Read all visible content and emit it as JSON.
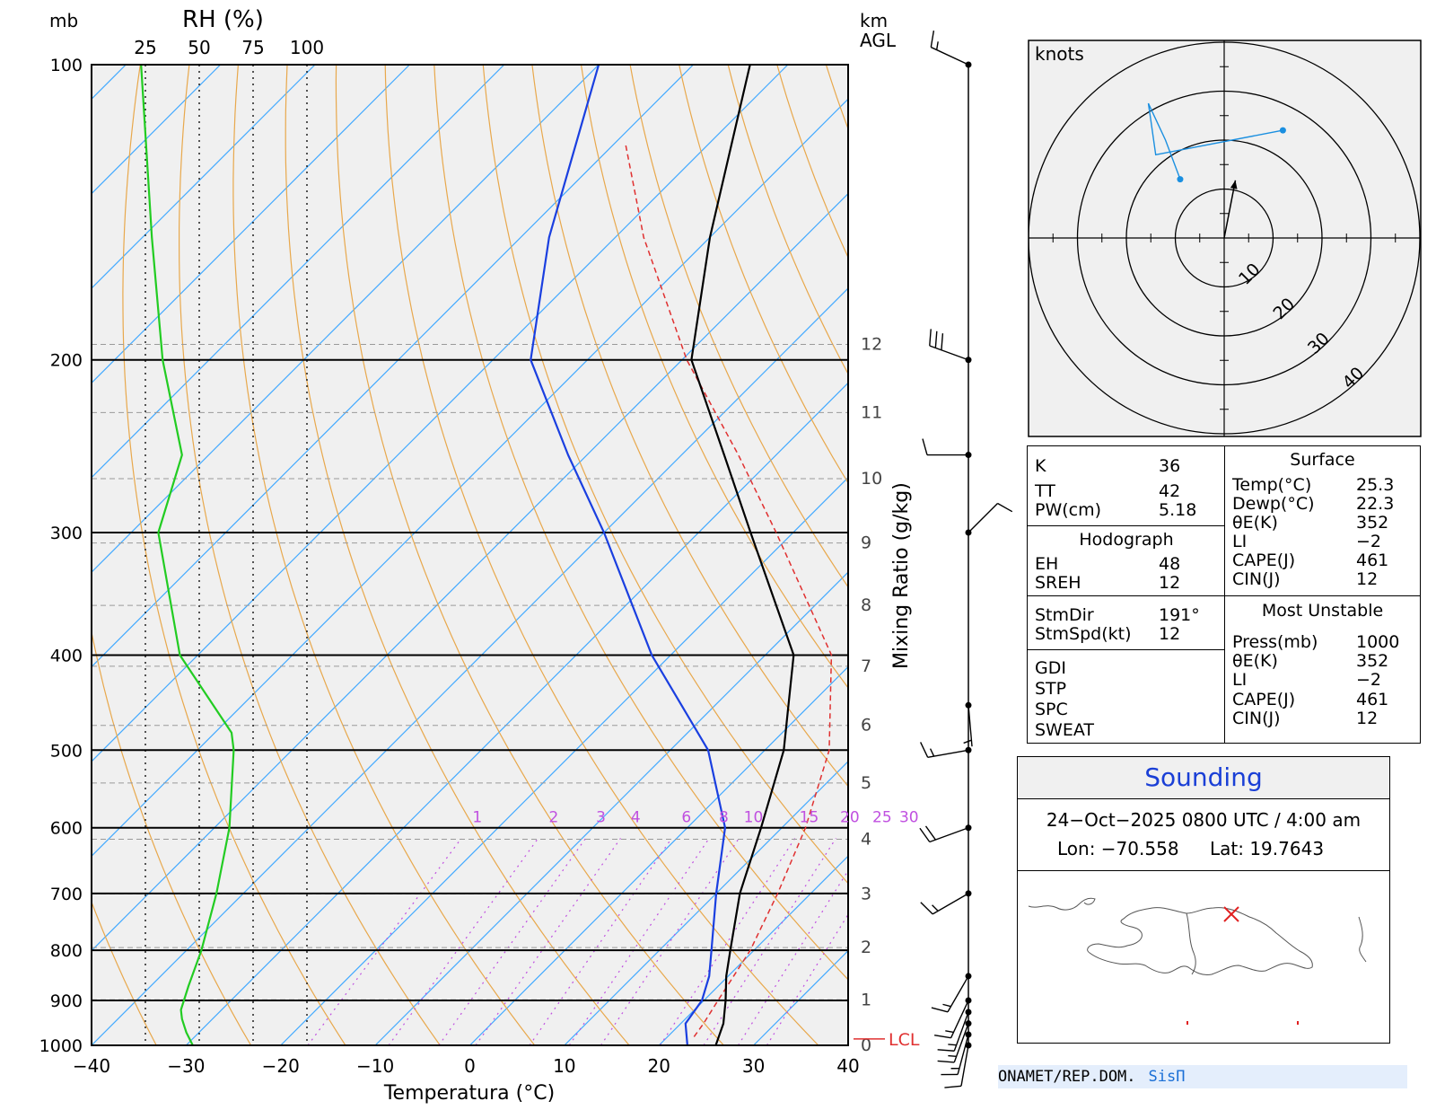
{
  "chart_data": {
    "type": "skew-t",
    "axis_labels": {
      "pressure_unit": "mb",
      "rh_label": "RH (%)",
      "height_unit_1": "km",
      "height_unit_2": "AGL",
      "mixing_ratio_label": "Mixing Ratio (g/kg)",
      "x_label": "Temperatura (°C)",
      "lcl_label": "LCL"
    },
    "pressure_levels": [
      100,
      200,
      300,
      400,
      500,
      600,
      700,
      800,
      900,
      1000
    ],
    "temperature_ticks": [
      -40,
      -30,
      -20,
      -10,
      0,
      10,
      20,
      30,
      40
    ],
    "rh_ticks": [
      "25",
      "50",
      "75",
      "100"
    ],
    "height_ticks_km": [
      "0",
      "1",
      "2",
      "3",
      "4",
      "5",
      "6",
      "7",
      "8",
      "9",
      "10",
      "11",
      "12"
    ],
    "mixing_ratio_ticks": [
      "1",
      "2",
      "3",
      "4",
      "6",
      "8",
      "10",
      "15",
      "20",
      "25",
      "30"
    ],
    "temperature_profile": [
      [
        1000,
        26.0
      ],
      [
        950,
        24.5
      ],
      [
        900,
        22.3
      ],
      [
        850,
        19.8
      ],
      [
        800,
        17.5
      ],
      [
        700,
        12.5
      ],
      [
        600,
        7.8
      ],
      [
        500,
        2.0
      ],
      [
        400,
        -7.0
      ],
      [
        300,
        -24.5
      ],
      [
        250,
        -35.5
      ],
      [
        200,
        -49.0
      ],
      [
        150,
        -60.0
      ],
      [
        100,
        -74.0
      ]
    ],
    "dewpoint_profile": [
      [
        1000,
        23.0
      ],
      [
        950,
        20.5
      ],
      [
        900,
        19.8
      ],
      [
        850,
        18.0
      ],
      [
        800,
        15.5
      ],
      [
        700,
        10.0
      ],
      [
        600,
        4.0
      ],
      [
        500,
        -6.0
      ],
      [
        400,
        -22.0
      ],
      [
        300,
        -40.0
      ],
      [
        250,
        -52.0
      ],
      [
        200,
        -66.0
      ],
      [
        150,
        -77.0
      ],
      [
        100,
        -90.0
      ]
    ],
    "parcel_profile": [
      [
        980,
        22.8
      ],
      [
        950,
        22.4
      ],
      [
        900,
        21.5
      ],
      [
        800,
        19.6
      ],
      [
        700,
        16.5
      ],
      [
        600,
        12.5
      ],
      [
        500,
        6.8
      ],
      [
        400,
        -3.0
      ],
      [
        300,
        -21.8
      ],
      [
        250,
        -34.0
      ],
      [
        200,
        -49.5
      ],
      [
        150,
        -67.0
      ],
      [
        120,
        -79.0
      ]
    ],
    "rh_profile": [
      [
        1000,
        47
      ],
      [
        970,
        44
      ],
      [
        940,
        42
      ],
      [
        920,
        41.5
      ],
      [
        870,
        45
      ],
      [
        800,
        51
      ],
      [
        700,
        58
      ],
      [
        600,
        64
      ],
      [
        500,
        66
      ],
      [
        480,
        65
      ],
      [
        400,
        41
      ],
      [
        300,
        31
      ],
      [
        250,
        42
      ],
      [
        200,
        33
      ],
      [
        150,
        28
      ],
      [
        100,
        23
      ]
    ],
    "lcl_pressure": 985,
    "wind_profile": [
      [
        1000,
        190,
        9
      ],
      [
        975,
        195,
        13
      ],
      [
        950,
        200,
        13
      ],
      [
        925,
        200,
        14
      ],
      [
        900,
        205,
        15
      ],
      [
        850,
        210,
        14
      ],
      [
        700,
        240,
        16
      ],
      [
        600,
        250,
        18
      ],
      [
        500,
        260,
        14
      ],
      [
        450,
        175,
        7
      ],
      [
        300,
        45,
        10
      ],
      [
        250,
        270,
        8
      ],
      [
        200,
        290,
        29
      ],
      [
        100,
        295,
        15
      ]
    ],
    "hodograph": {
      "unit_label": "knots",
      "ring_labels": [
        "10",
        "20",
        "30",
        "40"
      ],
      "trace_points_uv": [
        [
          12,
          22
        ],
        [
          -14,
          17
        ],
        [
          -15,
          24
        ],
        [
          -15.5,
          27.5
        ],
        [
          -12,
          20
        ],
        [
          -9,
          12
        ]
      ],
      "storm_motion_dir": 191,
      "storm_motion_kt": 12
    },
    "legend_placement": "none"
  },
  "indices": {
    "k_label": "K",
    "k_value": "36",
    "tt_label": "TT",
    "tt_value": "42",
    "pw_label": "PW(cm)",
    "pw_value": "5.18",
    "hodograph_title": "Hodograph",
    "eh_label": "EH",
    "eh_value": "48",
    "sreh_label": "SREH",
    "sreh_value": "12",
    "stmdir_label": "StmDir",
    "stmdir_value": "191°",
    "stmspd_label": "StmSpd(kt)",
    "stmspd_value": "12",
    "gdi_label": "GDI",
    "stp_label": "STP",
    "spc_label": "SPC",
    "sweat_label": "SWEAT",
    "surface_title": "Surface",
    "s_temp_label": "Temp(°C)",
    "s_temp_value": "25.3",
    "s_dewp_label": "Dewp(°C)",
    "s_dewp_value": "22.3",
    "s_thetae_label": "θE(K)",
    "s_thetae_value": "352",
    "s_li_label": "LI",
    "s_li_value": "−2",
    "s_cape_label": "CAPE(J)",
    "s_cape_value": "461",
    "s_cin_label": "CIN(J)",
    "s_cin_value": "12",
    "mu_title": "Most Unstable",
    "mu_press_label": "Press(mb)",
    "mu_press_value": "1000",
    "mu_thetae_label": "θE(K)",
    "mu_thetae_value": "352",
    "mu_li_label": "LI",
    "mu_li_value": "−2",
    "mu_cape_label": "CAPE(J)",
    "mu_cape_value": "461",
    "mu_cin_label": "CIN(J)",
    "mu_cin_value": "12"
  },
  "info": {
    "title": "Sounding",
    "datetime": "24−Oct−2025 0800 UTC / 4:00 am",
    "lon": "Lon: −70.558",
    "lat": "Lat: 19.7643",
    "map_marker": "site-marker-x"
  },
  "footer": {
    "org": "ONAMET/REP.DOM.",
    "brand": "SisΠ"
  },
  "colors": {
    "temperature": "#000000",
    "dewpoint": "#1a3fe0",
    "rh": "#22cc22",
    "parcel": "#e03030",
    "isotherm": "#44aaff",
    "dry_adiabat": "#e8a84c",
    "mixing_ratio": "#c050e0",
    "hodograph": "#1a8fe0",
    "plot_bg": "#f0f0f0"
  }
}
